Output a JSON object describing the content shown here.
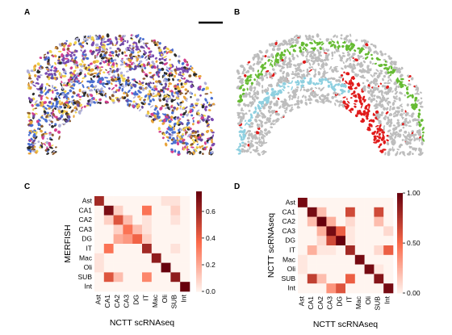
{
  "panels": {
    "A": {
      "letter": "A"
    },
    "B": {
      "letter": "B"
    },
    "C": {
      "letter": "C"
    },
    "D": {
      "letter": "D"
    }
  },
  "spatial_colors": {
    "A_palette": [
      "#e8a33a",
      "#6a4aa0",
      "#2c2c2c",
      "#d43f8d",
      "#4a6fd0",
      "#f0d24c",
      "#8a5a30",
      "#b0b0d8"
    ],
    "B_background": "#bdbdbd",
    "B_highlights": [
      "#66bb33",
      "#e01a1a",
      "#8fd0e0"
    ]
  },
  "heatmap_colors": {
    "low": "#fff5f0",
    "mid": "#fb6a4a",
    "high": "#67000d"
  },
  "chart_data": [
    {
      "type": "heatmap",
      "panel": "C",
      "rows": [
        "Ast",
        "CA1",
        "CA2",
        "CA3",
        "DG",
        "IT",
        "Mac",
        "Oli",
        "SUB",
        "Int"
      ],
      "cols": [
        "Ast",
        "CA1",
        "CA2",
        "CA3",
        "DG",
        "IT",
        "Mac",
        "Oli",
        "SUB",
        "Int"
      ],
      "values": [
        [
          0.6,
          0.0,
          0.0,
          0.0,
          0.0,
          0.0,
          0.0,
          0.05,
          0.05,
          0.0
        ],
        [
          0.0,
          0.7,
          0.1,
          0.0,
          0.0,
          0.35,
          0.0,
          0.0,
          0.1,
          0.0
        ],
        [
          0.0,
          0.1,
          0.45,
          0.15,
          0.0,
          0.05,
          0.0,
          0.0,
          0.05,
          0.0
        ],
        [
          0.0,
          0.0,
          0.1,
          0.35,
          0.15,
          0.05,
          0.0,
          0.0,
          0.0,
          0.0
        ],
        [
          0.0,
          0.0,
          0.2,
          0.25,
          0.4,
          0.1,
          0.0,
          0.0,
          0.0,
          0.0
        ],
        [
          0.0,
          0.35,
          0.0,
          0.0,
          0.0,
          0.6,
          0.0,
          0.0,
          0.05,
          0.0
        ],
        [
          0.05,
          0.0,
          0.0,
          0.0,
          0.0,
          0.0,
          0.65,
          0.0,
          0.0,
          0.0
        ],
        [
          0.05,
          0.0,
          0.0,
          0.0,
          0.0,
          0.0,
          0.0,
          0.75,
          0.0,
          0.0
        ],
        [
          0.0,
          0.45,
          0.15,
          0.0,
          0.0,
          0.3,
          0.0,
          0.0,
          0.65,
          0.0
        ],
        [
          0.0,
          0.0,
          0.0,
          0.0,
          0.0,
          0.0,
          0.0,
          0.0,
          0.0,
          0.8
        ]
      ],
      "xlabel": "NCTT scRNAseq",
      "ylabel": "MERFISH",
      "colorbar_ticks": [
        "0.0",
        "0.2",
        "0.4",
        "0.6"
      ],
      "vmin": 0.0,
      "vmax": 0.75
    },
    {
      "type": "heatmap",
      "panel": "D",
      "rows": [
        "Ast",
        "CA1",
        "CA2",
        "CA3",
        "DG",
        "IT",
        "Mac",
        "Oli",
        "SUB",
        "Int"
      ],
      "cols": [
        "Ast",
        "CA1",
        "CA2",
        "CA3",
        "DG",
        "IT",
        "Mac",
        "Oli",
        "SUB",
        "Int"
      ],
      "values": [
        [
          0.95,
          0.0,
          0.0,
          0.0,
          0.0,
          0.0,
          0.0,
          0.0,
          0.0,
          0.0
        ],
        [
          0.0,
          0.95,
          0.2,
          0.0,
          0.0,
          0.65,
          0.0,
          0.0,
          0.65,
          0.0
        ],
        [
          0.0,
          0.2,
          1.0,
          0.25,
          0.0,
          0.1,
          0.0,
          0.0,
          0.2,
          0.0
        ],
        [
          0.0,
          0.0,
          0.25,
          0.95,
          0.55,
          0.05,
          0.0,
          0.0,
          0.0,
          0.1
        ],
        [
          0.0,
          0.0,
          0.1,
          0.65,
          1.0,
          0.05,
          0.0,
          0.0,
          0.0,
          0.0
        ],
        [
          0.0,
          0.25,
          0.05,
          0.05,
          0.0,
          0.8,
          0.0,
          0.0,
          0.1,
          0.55
        ],
        [
          0.05,
          0.0,
          0.0,
          0.0,
          0.0,
          0.0,
          0.95,
          0.0,
          0.0,
          0.0
        ],
        [
          0.05,
          0.0,
          0.0,
          0.0,
          0.0,
          0.0,
          0.0,
          0.95,
          0.05,
          0.0
        ],
        [
          0.0,
          0.7,
          0.2,
          0.0,
          0.0,
          0.55,
          0.0,
          0.0,
          0.9,
          0.0
        ],
        [
          0.0,
          0.0,
          0.0,
          0.35,
          0.6,
          0.0,
          0.0,
          0.0,
          0.0,
          0.95
        ]
      ],
      "xlabel": "NCTT scRNAseq",
      "ylabel": "NCTT scRNAseq",
      "colorbar_ticks": [
        "0.00",
        "0.50",
        "1.00"
      ],
      "vmin": 0.0,
      "vmax": 1.0
    }
  ]
}
